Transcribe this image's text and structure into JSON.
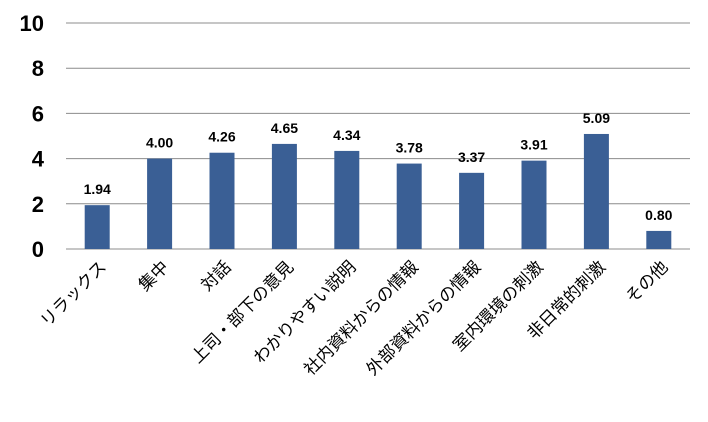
{
  "chart_data": {
    "type": "bar",
    "categories": [
      "リラックス",
      "集中",
      "対話",
      "上司・部下の意見",
      "わかりやすい説明",
      "社内資料からの情報",
      "外部資料からの情報",
      "室内環境の刺激",
      "非日常的刺激",
      "その他"
    ],
    "values": [
      1.94,
      4.0,
      4.26,
      4.65,
      4.34,
      3.78,
      3.37,
      3.91,
      5.09,
      0.8
    ],
    "data_labels": [
      "1.94",
      "4.00",
      "4.26",
      "4.65",
      "4.34",
      "3.78",
      "3.37",
      "3.91",
      "5.09",
      "0.80"
    ],
    "ylim": [
      0,
      10
    ],
    "yticks": [
      "0",
      "2",
      "4",
      "6",
      "8",
      "10"
    ],
    "grid": true,
    "bar_color": "#3a5f95",
    "grid_color": "#8c8c8c"
  }
}
